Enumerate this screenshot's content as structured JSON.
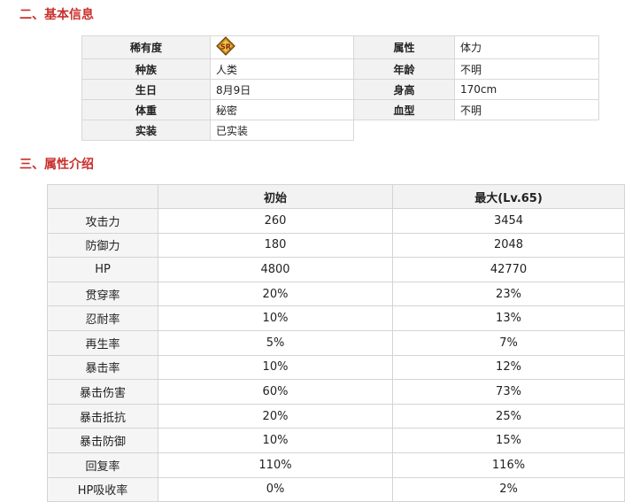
{
  "sections": {
    "basic_title": "二、基本信息",
    "attr_title": "三、属性介绍"
  },
  "basic_info": {
    "rarity_label": "稀有度",
    "rarity_icon": "sr-rarity-icon",
    "attribute_label": "属性",
    "attribute_value": "体力",
    "race_label": "种族",
    "race_value": "人类",
    "age_label": "年龄",
    "age_value": "不明",
    "birthday_label": "生日",
    "birthday_value": "8月9日",
    "height_label": "身高",
    "height_value": "170cm",
    "weight_label": "体重",
    "weight_value": "秘密",
    "blood_label": "血型",
    "blood_value": "不明",
    "implemented_label": "实装",
    "implemented_value": "已实装"
  },
  "attr_table": {
    "headers": [
      "",
      "初始",
      "最大(Lv.65)"
    ],
    "rows": [
      {
        "name": "攻击力",
        "initial": "260",
        "max": "3454"
      },
      {
        "name": "防御力",
        "initial": "180",
        "max": "2048"
      },
      {
        "name": "HP",
        "initial": "4800",
        "max": "42770"
      },
      {
        "name": "贯穿率",
        "initial": "20%",
        "max": "23%"
      },
      {
        "name": "忍耐率",
        "initial": "10%",
        "max": "13%"
      },
      {
        "name": "再生率",
        "initial": "5%",
        "max": "7%"
      },
      {
        "name": "暴击率",
        "initial": "10%",
        "max": "12%"
      },
      {
        "name": "暴击伤害",
        "initial": "60%",
        "max": "73%"
      },
      {
        "name": "暴击抵抗",
        "initial": "20%",
        "max": "25%"
      },
      {
        "name": "暴击防御",
        "initial": "10%",
        "max": "15%"
      },
      {
        "name": "回复率",
        "initial": "110%",
        "max": "116%"
      },
      {
        "name": "HP吸收率",
        "initial": "0%",
        "max": "2%"
      }
    ]
  }
}
